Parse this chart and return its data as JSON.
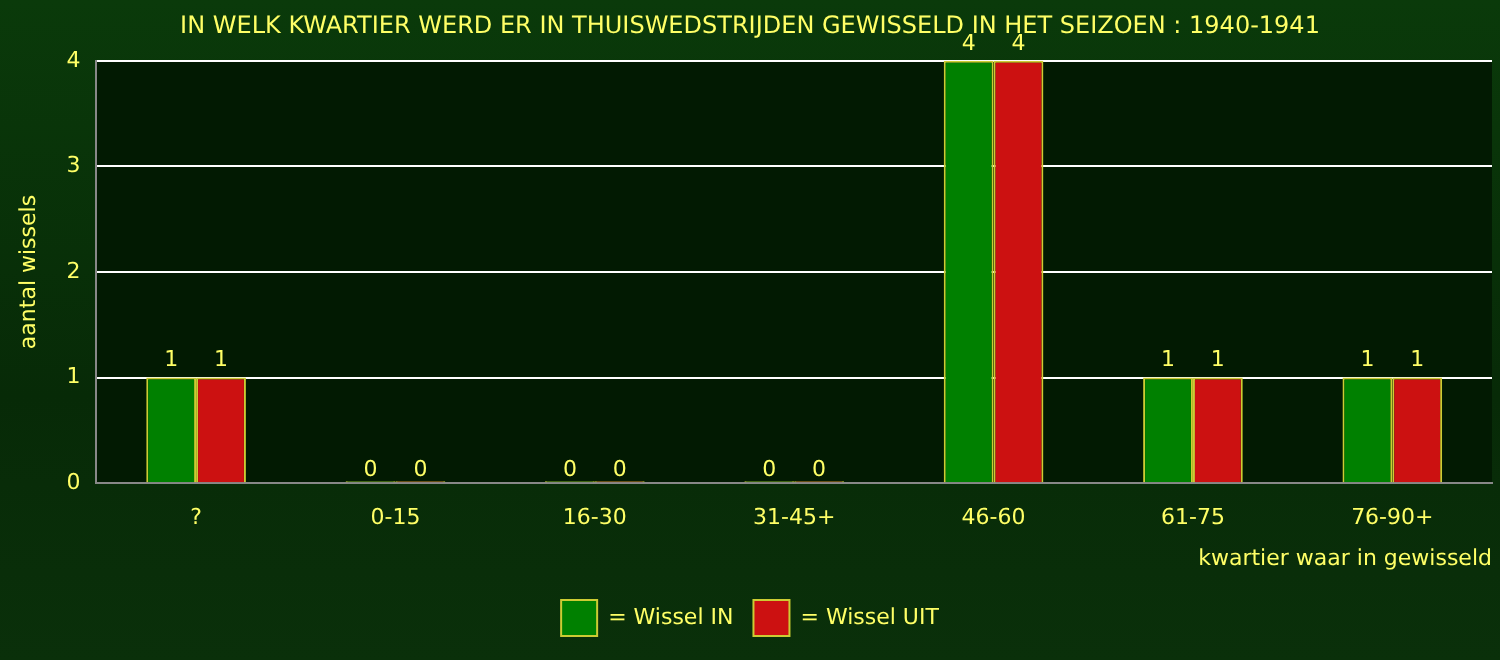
{
  "chart_data": {
    "type": "bar",
    "title": "IN WELK KWARTIER WERD ER IN THUISWEDSTRIJDEN GEWISSELD IN HET SEIZOEN : 1940-1941",
    "xlabel": "kwartier waar in gewisseld",
    "ylabel": "aantal wissels",
    "categories": [
      "?",
      "0-15",
      "16-30",
      "31-45+",
      "46-60",
      "61-75",
      "76-90+"
    ],
    "series": [
      {
        "name": "= Wissel IN",
        "color": "#008000",
        "values": [
          1,
          0,
          0,
          0,
          4,
          1,
          1
        ]
      },
      {
        "name": "= Wissel UIT",
        "color": "#cc1111",
        "values": [
          1,
          0,
          0,
          0,
          4,
          1,
          1
        ]
      }
    ],
    "ylim": [
      0,
      4
    ],
    "yticks": [
      0,
      1,
      2,
      3,
      4
    ],
    "grid": "y",
    "legend": "bottom",
    "data_labels": true
  }
}
